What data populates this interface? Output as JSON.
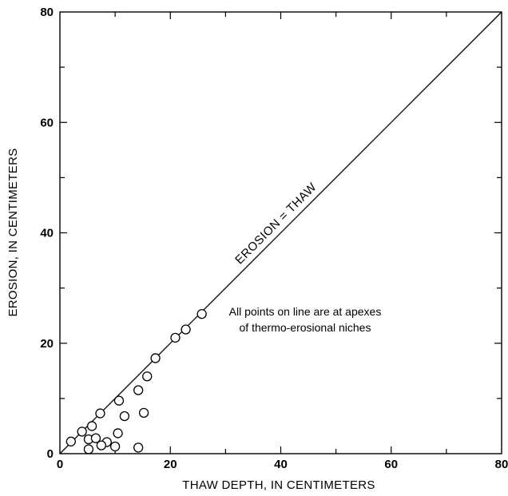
{
  "chart_data": {
    "type": "scatter",
    "xlabel": "THAW DEPTH, IN CENTIMETERS",
    "ylabel": "EROSION, IN CENTIMETERS",
    "xlim": [
      0,
      80
    ],
    "ylim": [
      0,
      80
    ],
    "xticks": [
      0,
      20,
      40,
      60,
      80
    ],
    "yticks": [
      0,
      20,
      40,
      60,
      80
    ],
    "minor_tick_step": 10,
    "grid": false,
    "reference_line": {
      "label": "EROSION = THAW",
      "from": [
        0,
        0
      ],
      "to": [
        80,
        80
      ]
    },
    "annotation": [
      "All points on line are at apexes",
      "of thermo-erosional niches"
    ],
    "points": [
      {
        "x": 2,
        "y": 2.2
      },
      {
        "x": 4,
        "y": 4
      },
      {
        "x": 5.8,
        "y": 5
      },
      {
        "x": 7.3,
        "y": 7.3
      },
      {
        "x": 10.7,
        "y": 9.6
      },
      {
        "x": 5.2,
        "y": 2.6
      },
      {
        "x": 6.5,
        "y": 2.8
      },
      {
        "x": 8.5,
        "y": 2.1
      },
      {
        "x": 5.2,
        "y": 0.8
      },
      {
        "x": 7.5,
        "y": 1.5
      },
      {
        "x": 10,
        "y": 1.3
      },
      {
        "x": 10.5,
        "y": 3.7
      },
      {
        "x": 11.7,
        "y": 6.8
      },
      {
        "x": 14.2,
        "y": 11.5
      },
      {
        "x": 15.2,
        "y": 7.4
      },
      {
        "x": 14.2,
        "y": 1.1
      },
      {
        "x": 15.8,
        "y": 14
      },
      {
        "x": 17.3,
        "y": 17.3
      },
      {
        "x": 20.9,
        "y": 21
      },
      {
        "x": 22.8,
        "y": 22.5
      },
      {
        "x": 25.7,
        "y": 25.3
      }
    ]
  }
}
